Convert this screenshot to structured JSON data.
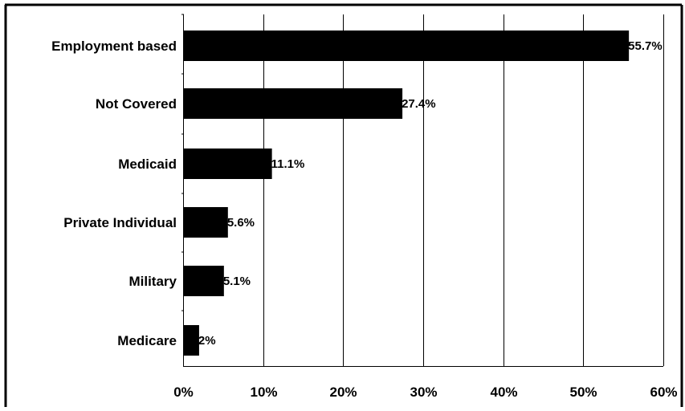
{
  "chart_data": {
    "type": "bar",
    "orientation": "horizontal",
    "categories": [
      "Employment based",
      "Not Covered",
      "Medicaid",
      "Private Individual",
      "Military",
      "Medicare"
    ],
    "values": [
      55.7,
      27.4,
      11.1,
      5.6,
      5.1,
      2
    ],
    "data_labels": [
      "55.7%",
      "27.4%",
      "11.1%",
      "5.6%",
      "5.1%",
      "2%"
    ],
    "xlim": [
      0,
      60
    ],
    "xticks": [
      0,
      10,
      20,
      30,
      40,
      50,
      60
    ],
    "xtick_labels": [
      "0%",
      "10%",
      "20%",
      "30%",
      "40%",
      "50%",
      "60%"
    ],
    "grid": "vertical",
    "bar_color": "#000000",
    "frame_color": "#000000",
    "title": "",
    "xlabel": "",
    "ylabel": ""
  }
}
